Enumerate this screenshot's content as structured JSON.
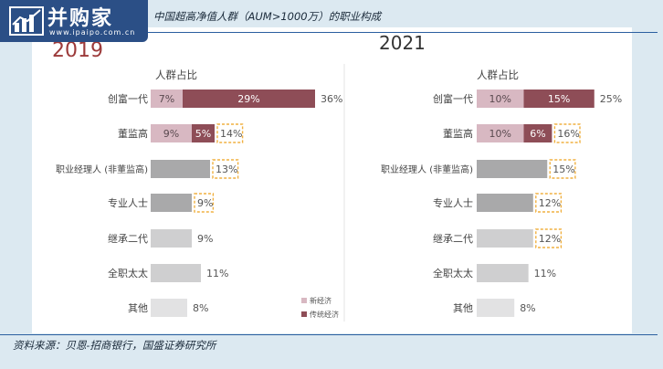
{
  "watermark": {
    "brand": "并购家",
    "url": "www.ipaipo.com.cn"
  },
  "title": "中国超高净值人群（AUM>1000万）的职业构成",
  "source": "资料来源：贝恩-招商银行，国盛证券研究所",
  "colors": {
    "new_economy": "#d8b8c2",
    "traditional": "#8e4d57",
    "single": "#a9a9aa",
    "light": "#cfcfd0",
    "lighter": "#e2e2e3",
    "dashed_box": "#f0b040",
    "year_2019": "#9c3a3a",
    "year_2021": "#333333"
  },
  "legend": [
    "新经济",
    "传统经济"
  ],
  "chart_data": [
    {
      "type": "bar",
      "year": "2019",
      "header": "人群占比",
      "categories": [
        "创富一代",
        "董监高",
        "职业经理人 (非董监高)",
        "专业人士",
        "继承二代",
        "全职太太",
        "其他"
      ],
      "series": [
        {
          "name": "新经济",
          "values": [
            7,
            9,
            null,
            null,
            null,
            null,
            null
          ]
        },
        {
          "name": "传统经济",
          "values": [
            29,
            5,
            null,
            null,
            null,
            null,
            null
          ]
        }
      ],
      "single_values": [
        null,
        null,
        13,
        9,
        9,
        11,
        8
      ],
      "totals": [
        36,
        14,
        13,
        9,
        9,
        11,
        8
      ],
      "segment_labels": [
        [
          "7%",
          "29%"
        ],
        [
          "9%",
          "5%"
        ],
        [],
        [],
        [],
        [],
        []
      ],
      "total_labels": [
        "36%",
        "14%",
        "13%",
        "9%",
        "9%",
        "11%",
        "8%"
      ],
      "highlighted": [
        false,
        true,
        true,
        true,
        false,
        false,
        false
      ]
    },
    {
      "type": "bar",
      "year": "2021",
      "header": "人群占比",
      "categories": [
        "创富一代",
        "董监高",
        "职业经理人 (非董监高)",
        "专业人士",
        "继承二代",
        "全职太太",
        "其他"
      ],
      "series": [
        {
          "name": "新经济",
          "values": [
            10,
            10,
            null,
            null,
            null,
            null,
            null
          ]
        },
        {
          "name": "传统经济",
          "values": [
            15,
            6,
            null,
            null,
            null,
            null,
            null
          ]
        }
      ],
      "single_values": [
        null,
        null,
        15,
        12,
        12,
        11,
        8
      ],
      "totals": [
        25,
        16,
        15,
        12,
        12,
        11,
        8
      ],
      "segment_labels": [
        [
          "10%",
          "15%"
        ],
        [
          "10%",
          "6%"
        ],
        [],
        [],
        [],
        [],
        []
      ],
      "total_labels": [
        "25%",
        "16%",
        "15%",
        "12%",
        "12%",
        "11%",
        "8%"
      ],
      "highlighted": [
        false,
        true,
        true,
        true,
        true,
        false,
        false
      ]
    }
  ]
}
